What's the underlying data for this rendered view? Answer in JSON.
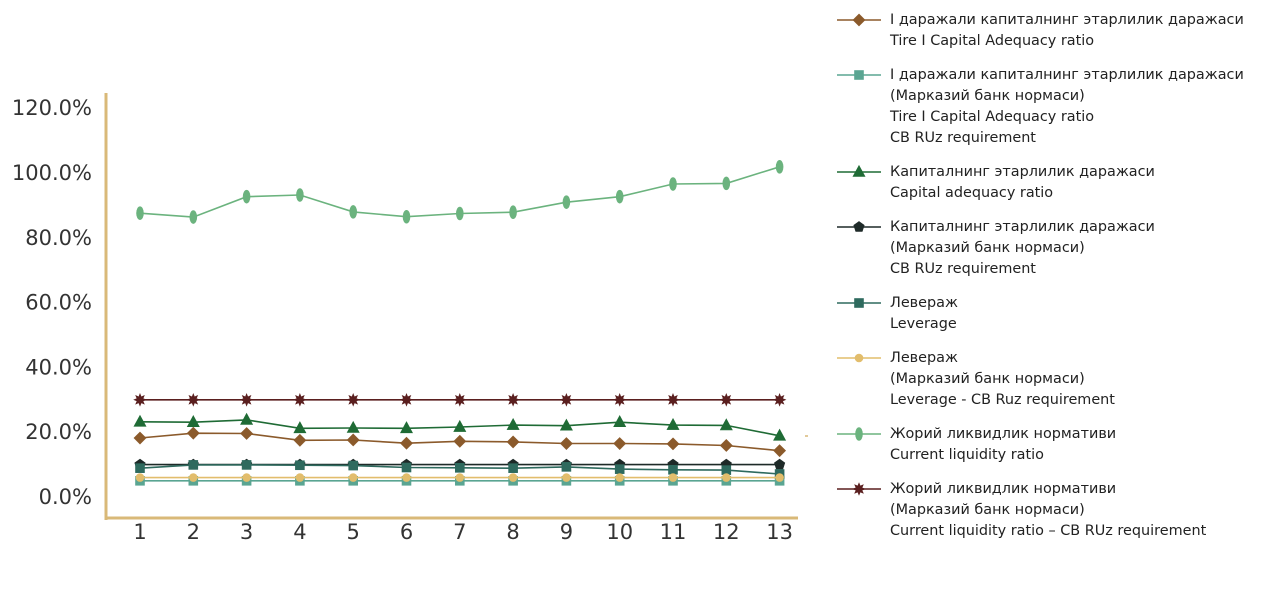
{
  "chart_data": {
    "type": "line",
    "x": [
      "1",
      "2",
      "3",
      "4",
      "5",
      "6",
      "7",
      "8",
      "9",
      "10",
      "11",
      "12",
      "13"
    ],
    "y_ticks": [
      "0.0%",
      "20.0%",
      "40.0%",
      "60.0%",
      "80.0%",
      "100.0%",
      "120.0%"
    ],
    "ylim": [
      0,
      120
    ],
    "grid": false,
    "legend_position": "right",
    "axis_color": "#d9b978",
    "series": [
      {
        "name": "І даражали капиталнинг этарлилик даражаси\nTire I Capital Adequacy ratio",
        "color": "#8b5a2b",
        "marker": "diamond",
        "values": [
          18.2,
          19.7,
          19.6,
          17.5,
          17.6,
          16.6,
          17.2,
          17.0,
          16.5,
          16.5,
          16.4,
          15.9,
          14.3
        ]
      },
      {
        "name": "І даражали капиталнинг этарлилик даражаси\n(Марказий банк нормаси)\nTire I Capital Adequacy ratio\nCB RUz requirement",
        "color": "#5aa592",
        "marker": "square",
        "values": [
          5.0,
          5.0,
          5.0,
          5.0,
          5.0,
          5.0,
          5.0,
          5.0,
          5.0,
          5.0,
          5.0,
          5.0,
          5.0
        ]
      },
      {
        "name": "Капиталнинг этарлилик даражаси\nCapital adequacy ratio",
        "color": "#1f6b35",
        "marker": "triangle",
        "values": [
          23.2,
          23.1,
          23.8,
          21.2,
          21.3,
          21.2,
          21.6,
          22.2,
          22.0,
          23.1,
          22.2,
          22.1,
          18.9
        ]
      },
      {
        "name": "Капиталнинг этарлилик даражаси\n(Марказий банк нормаси)\nCB RUz requirement",
        "color": "#1e2a28",
        "marker": "pentagon",
        "values": [
          10.0,
          10.0,
          10.0,
          10.0,
          10.0,
          10.0,
          10.0,
          10.0,
          10.0,
          10.0,
          10.0,
          10.0,
          10.0
        ]
      },
      {
        "name": "Левераж\nLeverage",
        "color": "#2e6a5e",
        "marker": "square",
        "values": [
          8.9,
          9.9,
          9.9,
          9.8,
          9.7,
          9.1,
          9.0,
          8.9,
          9.3,
          8.6,
          8.4,
          8.3,
          7.1
        ]
      },
      {
        "name": "Левераж\n(Марказий банк нормаси)\nLeverage - CB Ruz  requirement",
        "color": "#e2bd6c",
        "marker": "circle",
        "values": [
          6.0,
          6.0,
          6.0,
          6.0,
          6.0,
          6.0,
          6.0,
          6.0,
          6.0,
          6.0,
          6.0,
          6.0,
          6.0
        ]
      },
      {
        "name": "Жорий ликвидлик нормативи\nCurrent liquidity ratio",
        "color": "#6bb37e",
        "marker": "ellipse",
        "values": [
          87.6,
          86.4,
          92.7,
          93.2,
          88.0,
          86.5,
          87.5,
          87.9,
          91.0,
          92.7,
          96.6,
          96.8,
          101.9
        ]
      },
      {
        "name": "Жорий ликвидлик нормативи\n(Марказий банк нормаси)\nCurrent liquidity ratio –  CB RUz requirement",
        "color": "#5a1f1f",
        "marker": "star",
        "values": [
          30.0,
          30.0,
          30.0,
          30.0,
          30.0,
          30.0,
          30.0,
          30.0,
          30.0,
          30.0,
          30.0,
          30.0,
          30.0
        ]
      }
    ]
  }
}
